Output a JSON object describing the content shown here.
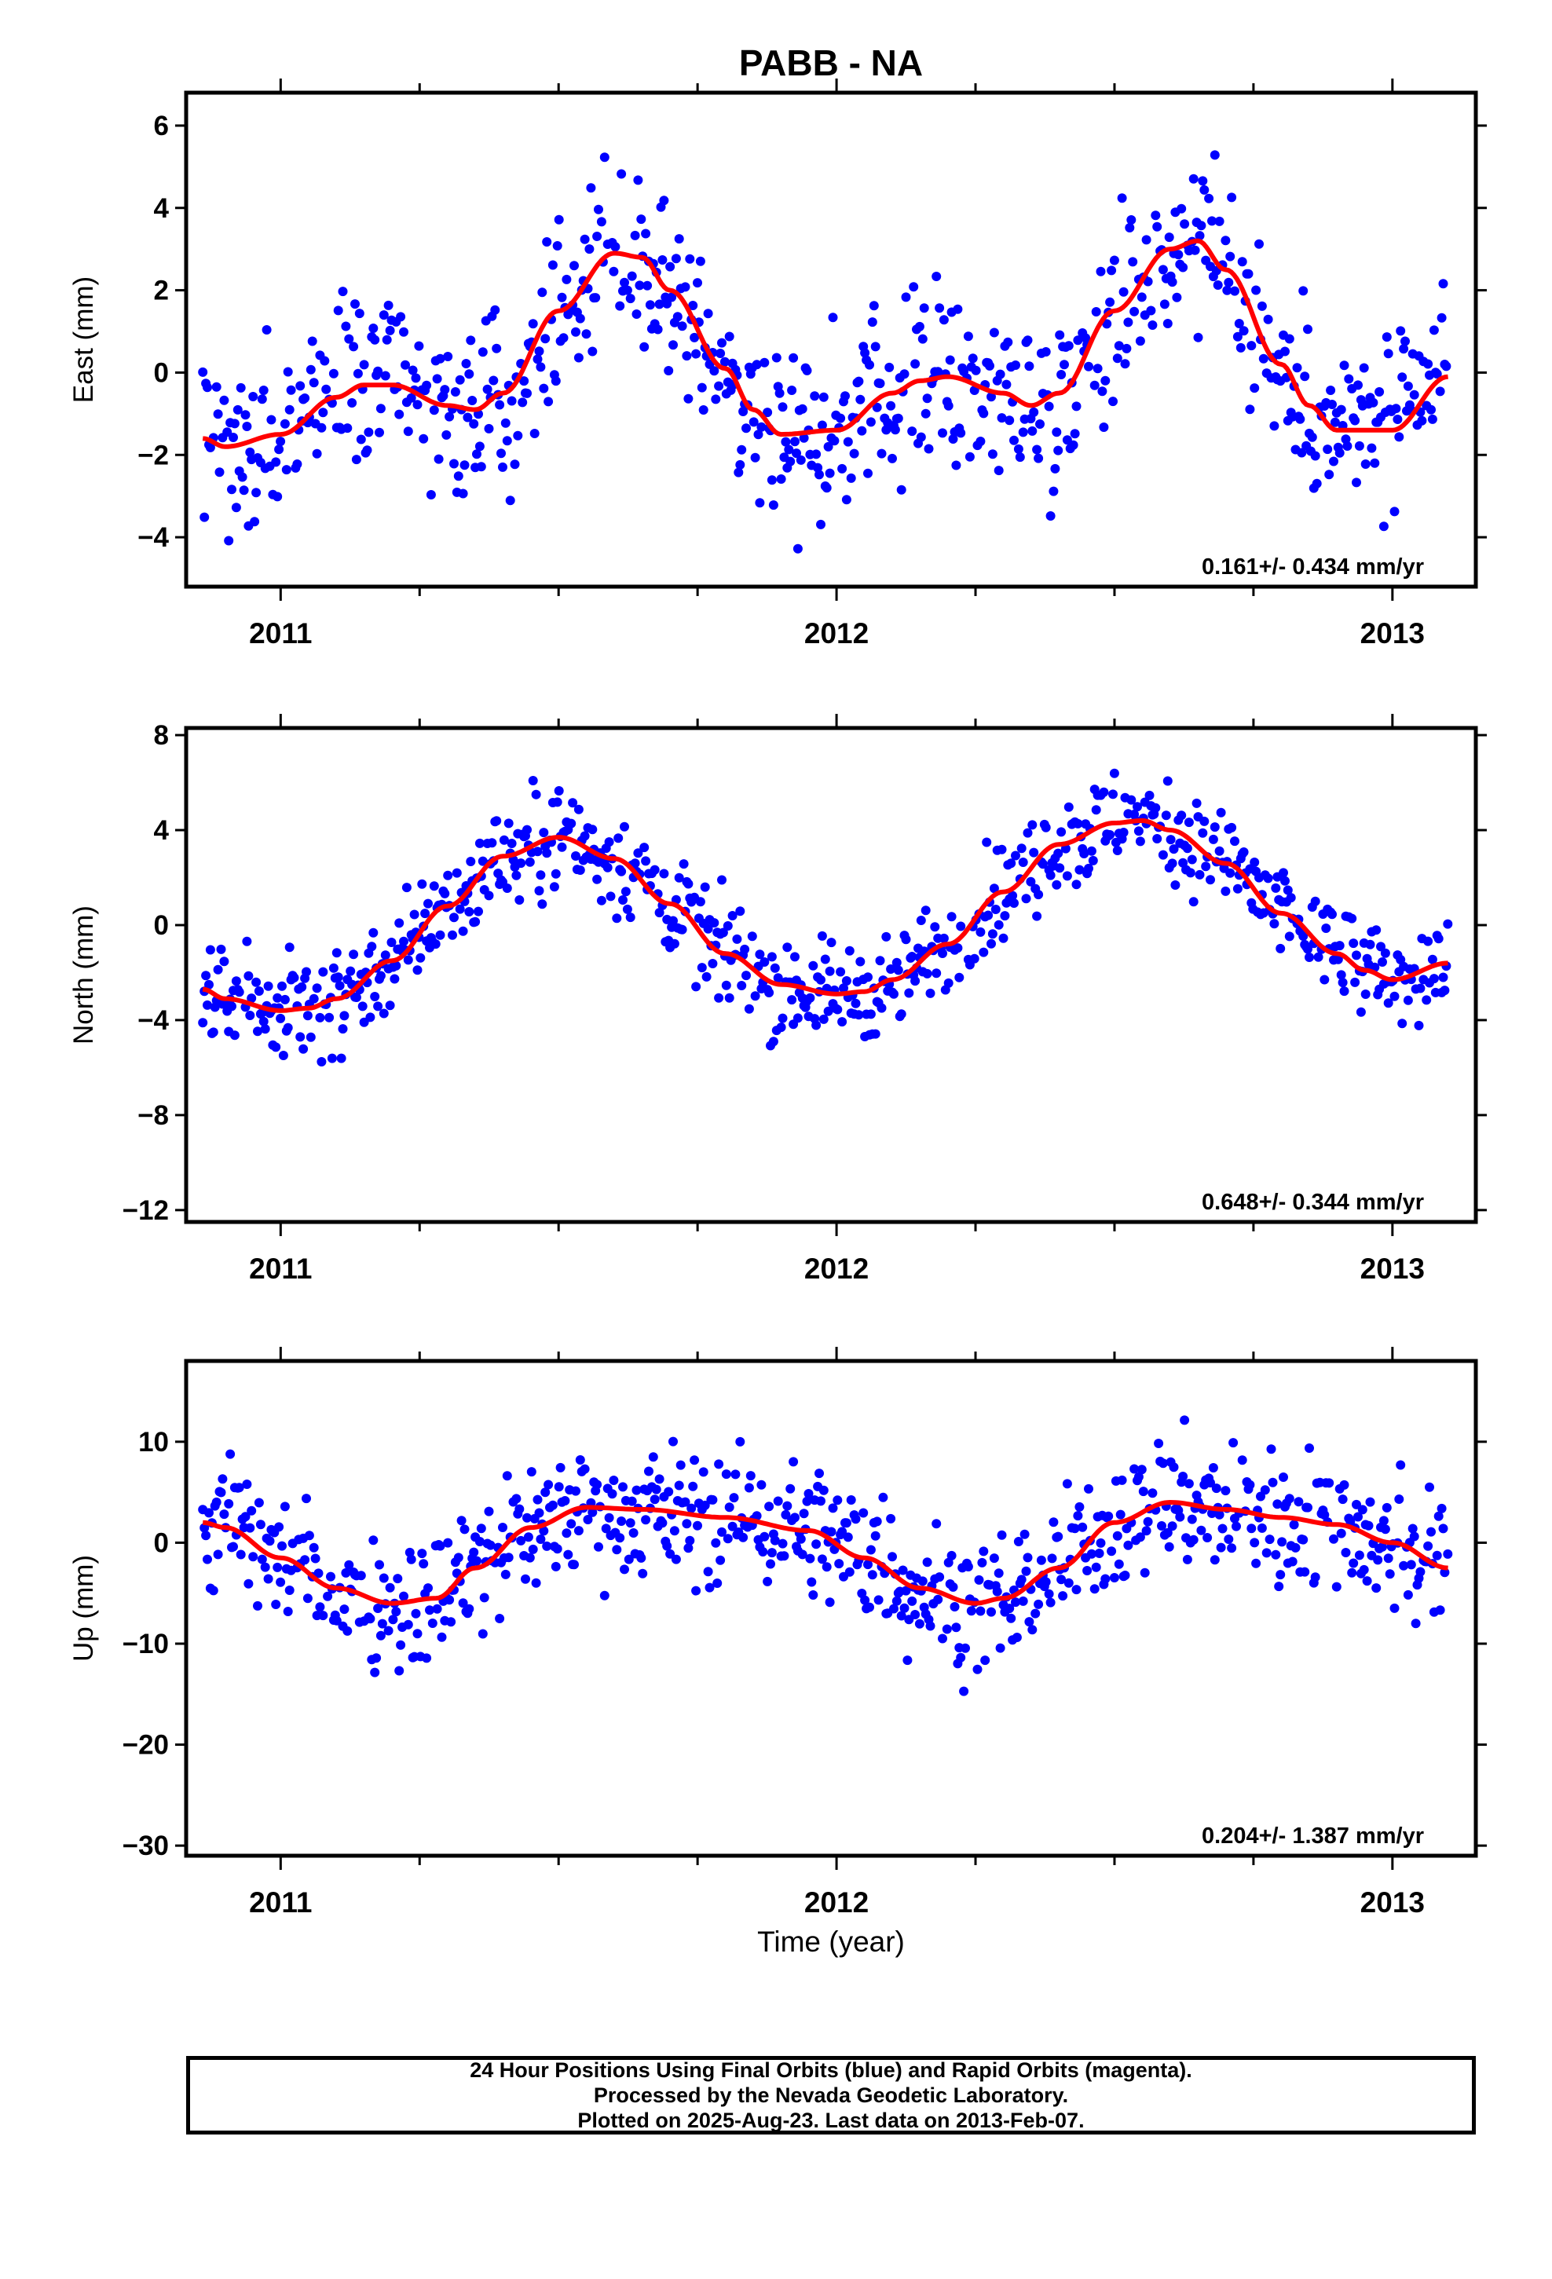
{
  "title": "PABB - NA",
  "xlabel": "Time (year)",
  "footer": {
    "line1": "24 Hour Positions Using Final Orbits (blue) and Rapid Orbits (magenta).",
    "line2": "Processed by the Nevada Geodetic Laboratory.",
    "line3": "Plotted on 2025-Aug-23. Last data on 2013-Feb-07."
  },
  "colors": {
    "final_orbits": "#0000ff",
    "rapid_orbits": "#ff00ff",
    "model": "#ff0000",
    "frame": "#000000"
  },
  "chart_data": [
    {
      "type": "scatter",
      "ylabel": "East (mm)",
      "xlim": [
        2010.83,
        2013.15
      ],
      "ylim": [
        -5.2,
        6.8
      ],
      "yticks": [
        -4,
        -2,
        0,
        2,
        4,
        6
      ],
      "xticks": [
        2011,
        2012,
        2013
      ],
      "rate_label": "0.161+/- 0.434 mm/yr",
      "model": {
        "name": "seasonal fit",
        "x": [
          2010.86,
          2010.9,
          2011.0,
          2011.1,
          2011.15,
          2011.2,
          2011.3,
          2011.35,
          2011.4,
          2011.5,
          2011.6,
          2011.65,
          2011.7,
          2011.8,
          2011.85,
          2011.9,
          2012.0,
          2012.1,
          2012.15,
          2012.2,
          2012.3,
          2012.35,
          2012.4,
          2012.5,
          2012.6,
          2012.65,
          2012.7,
          2012.8,
          2012.85,
          2012.9,
          2013.0,
          2013.1
        ],
        "y": [
          -1.6,
          -1.8,
          -1.5,
          -0.6,
          -0.3,
          -0.3,
          -0.8,
          -0.9,
          -0.5,
          1.5,
          2.9,
          2.8,
          2.0,
          0.1,
          -0.9,
          -1.5,
          -1.4,
          -0.5,
          -0.2,
          -0.1,
          -0.5,
          -0.8,
          -0.5,
          1.5,
          3.0,
          3.2,
          2.5,
          0.2,
          -0.8,
          -1.4,
          -1.4,
          -0.1
        ]
      }
    },
    {
      "type": "scatter",
      "ylabel": "North (mm)",
      "xlim": [
        2010.83,
        2013.15
      ],
      "ylim": [
        -12.5,
        8.3
      ],
      "yticks": [
        -12,
        -8,
        -4,
        0,
        4,
        8
      ],
      "xticks": [
        2011,
        2012,
        2013
      ],
      "rate_label": "0.648+/- 0.344 mm/yr",
      "model": {
        "name": "seasonal fit",
        "x": [
          2010.86,
          2010.9,
          2011.0,
          2011.05,
          2011.1,
          2011.2,
          2011.3,
          2011.4,
          2011.5,
          2011.6,
          2011.7,
          2011.8,
          2011.9,
          2012.0,
          2012.05,
          2012.1,
          2012.2,
          2012.3,
          2012.4,
          2012.5,
          2012.55,
          2012.6,
          2012.7,
          2012.8,
          2012.9,
          2012.95,
          2013.0,
          2013.1
        ],
        "y": [
          -2.7,
          -3.1,
          -3.6,
          -3.5,
          -3.1,
          -1.5,
          0.8,
          2.9,
          3.7,
          2.8,
          0.9,
          -1.2,
          -2.5,
          -2.9,
          -2.8,
          -2.3,
          -0.8,
          1.4,
          3.4,
          4.3,
          4.4,
          4.0,
          2.6,
          0.5,
          -1.2,
          -1.9,
          -2.3,
          -1.6
        ]
      }
    },
    {
      "type": "scatter",
      "ylabel": "Up (mm)",
      "xlim": [
        2010.83,
        2013.15
      ],
      "ylim": [
        -31,
        18
      ],
      "yticks": [
        -30,
        -20,
        -10,
        0,
        10
      ],
      "xticks": [
        2011,
        2012,
        2013
      ],
      "rate_label": "0.204+/- 1.387 mm/yr",
      "model": {
        "name": "seasonal fit",
        "x": [
          2010.86,
          2010.9,
          2011.0,
          2011.1,
          2011.2,
          2011.28,
          2011.35,
          2011.45,
          2011.55,
          2011.65,
          2011.8,
          2011.95,
          2012.05,
          2012.15,
          2012.25,
          2012.3,
          2012.4,
          2012.5,
          2012.6,
          2012.7,
          2012.8,
          2012.9,
          2013.0,
          2013.1
        ],
        "y": [
          2.0,
          1.5,
          -1.5,
          -4.5,
          -6.0,
          -5.5,
          -2.5,
          1.5,
          3.5,
          3.3,
          2.5,
          1.2,
          -1.5,
          -4.5,
          -6.0,
          -5.5,
          -2.5,
          2.0,
          4.0,
          3.3,
          2.5,
          1.8,
          0.0,
          -2.5
        ]
      }
    }
  ]
}
